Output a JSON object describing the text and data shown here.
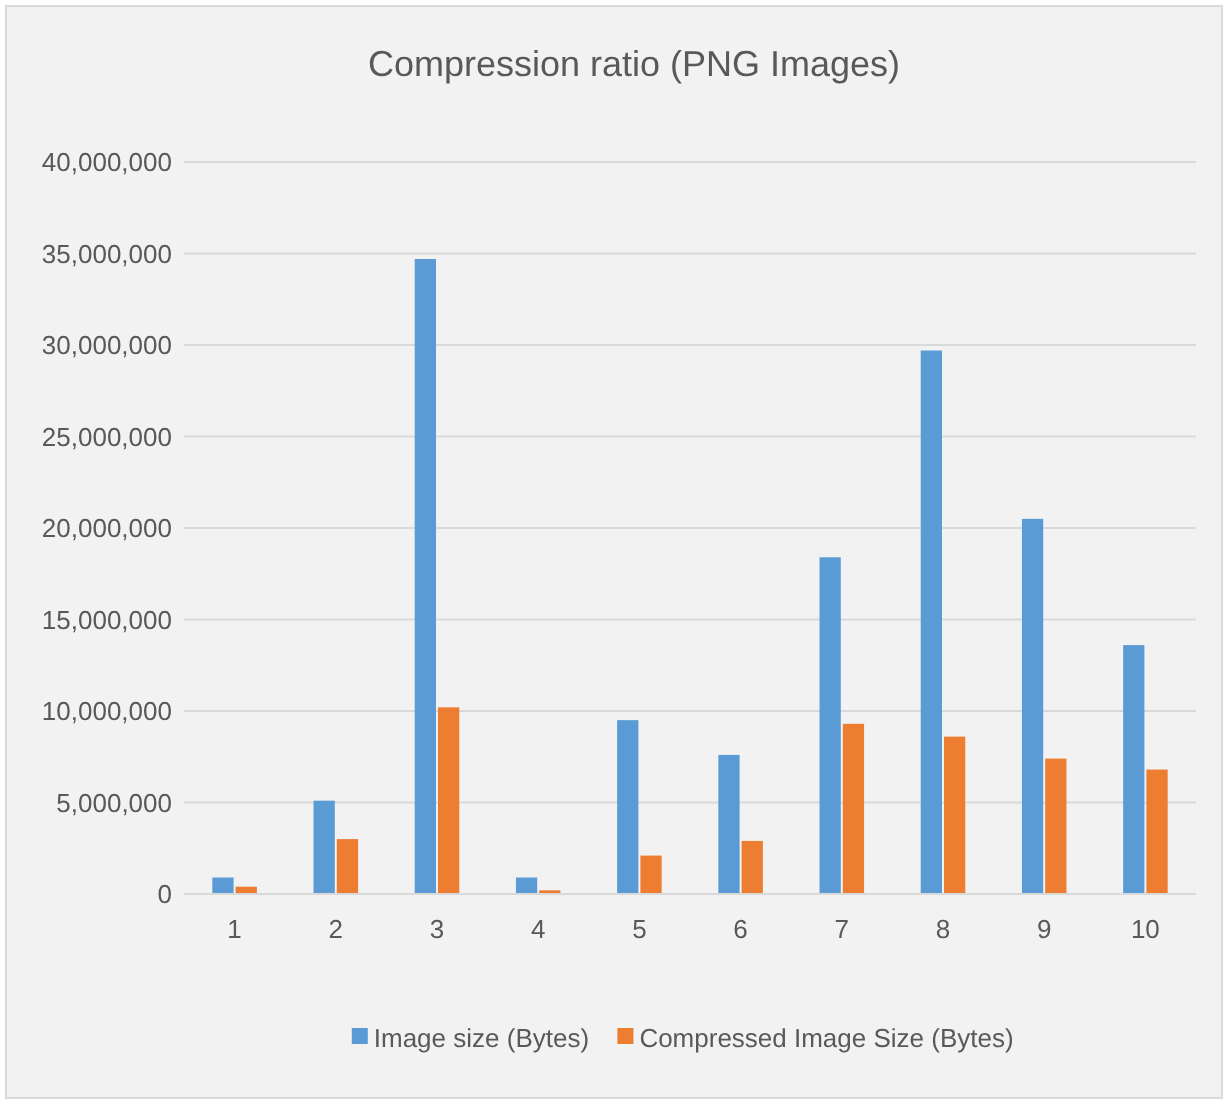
{
  "chart_data": {
    "type": "bar",
    "title": "Compression ratio (PNG Images)",
    "categories": [
      "1",
      "2",
      "3",
      "4",
      "5",
      "6",
      "7",
      "8",
      "9",
      "10"
    ],
    "series": [
      {
        "name": "Image size (Bytes)",
        "color": "#5b9bd5",
        "values": [
          900000,
          5100000,
          34700000,
          900000,
          9500000,
          7600000,
          18400000,
          29700000,
          20500000,
          13600000
        ]
      },
      {
        "name": "Compressed Image Size (Bytes)",
        "color": "#ed7d31",
        "values": [
          400000,
          3000000,
          10200000,
          200000,
          2100000,
          2900000,
          9300000,
          8600000,
          7400000,
          6800000
        ]
      }
    ],
    "ylim": [
      0,
      40000000
    ],
    "yticks": [
      {
        "value": 0,
        "label": "0"
      },
      {
        "value": 5000000,
        "label": "5,000,000"
      },
      {
        "value": 10000000,
        "label": "10,000,000"
      },
      {
        "value": 15000000,
        "label": "15,000,000"
      },
      {
        "value": 20000000,
        "label": "20,000,000"
      },
      {
        "value": 25000000,
        "label": "25,000,000"
      },
      {
        "value": 30000000,
        "label": "30,000,000"
      },
      {
        "value": 35000000,
        "label": "35,000,000"
      },
      {
        "value": 40000000,
        "label": "40,000,000"
      }
    ],
    "grid": "y",
    "legend": "bottom"
  }
}
